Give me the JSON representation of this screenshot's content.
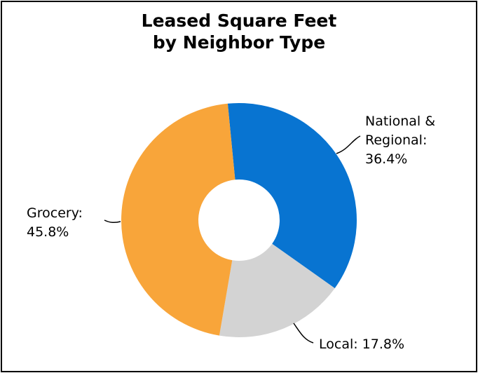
{
  "chart_data": {
    "type": "pie",
    "title": "Leased Square Feet by Neighbor Type",
    "title_lines": [
      "Leased Square Feet",
      "by Neighbor Type"
    ],
    "donut": true,
    "slices": [
      {
        "name": "National & Regional",
        "value": 36.4,
        "label_lines": [
          "National &",
          "Regional:",
          "36.4%"
        ],
        "color": "#0874D1"
      },
      {
        "name": "Local",
        "value": 17.8,
        "label_lines": [
          "Local: 17.8%"
        ],
        "color": "#D3D3D3"
      },
      {
        "name": "Grocery",
        "value": 45.8,
        "label_lines": [
          "Grocery:",
          "45.8%"
        ],
        "color": "#F8A53A"
      }
    ]
  }
}
